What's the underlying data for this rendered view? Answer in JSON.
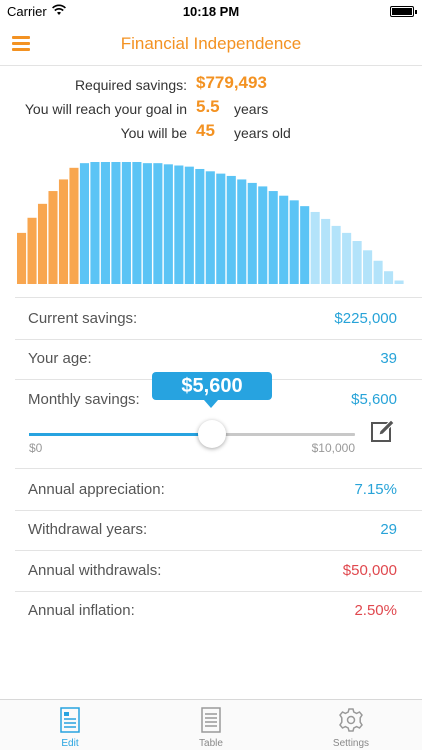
{
  "status": {
    "carrier": "Carrier",
    "time": "10:18 PM"
  },
  "nav": {
    "title": "Financial Independence",
    "menu_icon": "hamburger-menu-icon"
  },
  "summary": {
    "required_label": "Required savings:",
    "required_value": "$779,493",
    "reach_label": "You will reach your goal in",
    "reach_value": "5.5",
    "reach_unit": "years",
    "age_label": "You will be",
    "age_value": "45",
    "age_unit": "years old"
  },
  "chart_data": {
    "type": "bar",
    "bar_values": [
      0.44,
      0.57,
      0.69,
      0.8,
      0.9,
      1.0,
      1.04,
      1.05,
      1.05,
      1.05,
      1.05,
      1.05,
      1.04,
      1.04,
      1.03,
      1.02,
      1.01,
      0.99,
      0.97,
      0.95,
      0.93,
      0.9,
      0.87,
      0.84,
      0.8,
      0.76,
      0.72,
      0.67,
      0.62,
      0.56,
      0.5,
      0.44,
      0.37,
      0.29,
      0.2,
      0.11,
      0.03
    ],
    "ylim": [
      0,
      1.05
    ],
    "phase_counts": {
      "saving": 6,
      "withdrawal": 22,
      "projection": 9
    },
    "colors": {
      "saving": "#f8a64f",
      "withdrawal": "#5bc4f5",
      "projection": "#b3e3fa"
    }
  },
  "params": {
    "current_savings_label": "Current savings:",
    "current_savings_value": "$225,000",
    "age_label": "Your age:",
    "age_value": "39",
    "monthly_label": "Monthly savings:",
    "monthly_value": "$5,600",
    "appreciation_label": "Annual appreciation:",
    "appreciation_value": "7.15%",
    "withdrawal_years_label": "Withdrawal years:",
    "withdrawal_years_value": "29",
    "withdrawals_label": "Annual withdrawals:",
    "withdrawals_value": "$50,000",
    "inflation_label": "Annual inflation:",
    "inflation_value": "2.50%"
  },
  "slider": {
    "bubble": "$5,600",
    "min_label": "$0",
    "max_label": "$10,000",
    "value": 5600,
    "min": 0,
    "max": 10000,
    "edit_icon": "edit-pencil-icon"
  },
  "tabs": [
    {
      "label": "Edit",
      "icon": "edit-document-icon",
      "active": true
    },
    {
      "label": "Table",
      "icon": "table-document-icon",
      "active": false
    },
    {
      "label": "Settings",
      "icon": "gear-icon",
      "active": false
    }
  ],
  "colors": {
    "accent_orange": "#f39222",
    "accent_blue": "#27a3e0",
    "value_red": "#e0484e"
  }
}
